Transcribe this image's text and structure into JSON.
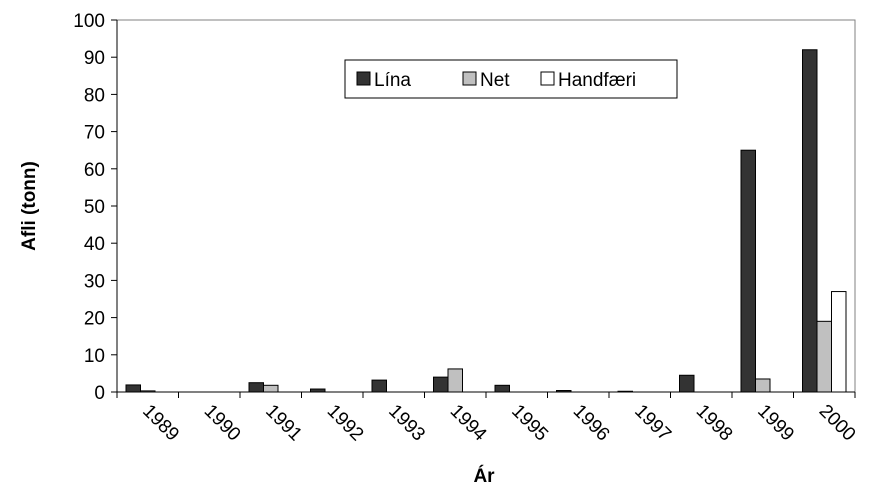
{
  "chart_data": {
    "type": "bar",
    "x_label": "Ár",
    "y_label": "Afli (tonn)",
    "categories": [
      "1989",
      "1990",
      "1991",
      "1992",
      "1993",
      "1994",
      "1995",
      "1996",
      "1997",
      "1998",
      "1999",
      "2000"
    ],
    "series": [
      {
        "name": "Lína",
        "color": "#333333",
        "values": [
          1.9,
          0,
          2.5,
          0.8,
          3.2,
          4,
          1.8,
          0.4,
          0.2,
          4.5,
          65,
          92
        ]
      },
      {
        "name": "Net",
        "color": "#c0c0c0",
        "values": [
          0.3,
          0,
          1.8,
          0,
          0,
          6.2,
          0,
          0,
          0,
          0,
          3.5,
          19
        ]
      },
      {
        "name": "Handfæri",
        "color": "#ffffff",
        "values": [
          0,
          0,
          0,
          0,
          0,
          0,
          0,
          0,
          0,
          0,
          0,
          27
        ]
      }
    ],
    "ylim": [
      0,
      100
    ],
    "yticks": [
      0,
      10,
      20,
      30,
      40,
      50,
      60,
      70,
      80,
      90,
      100
    ],
    "grid": false,
    "legend": "top-right"
  }
}
